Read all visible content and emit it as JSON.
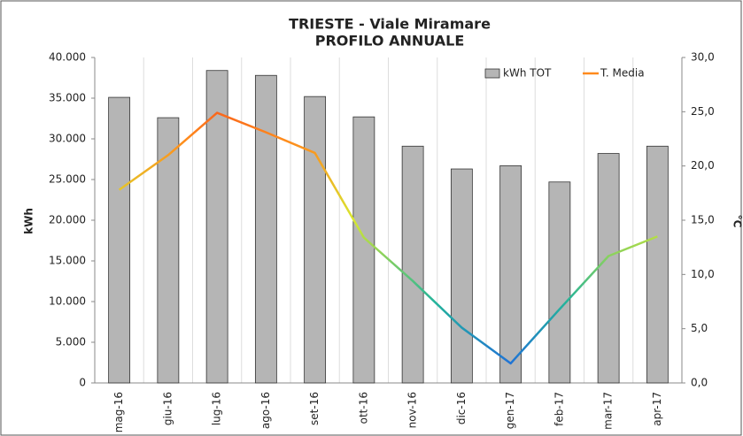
{
  "chart_data": {
    "type": "bar-line",
    "title": "TRIESTE - Viale Miramare",
    "subtitle": "PROFILO ANNUALE",
    "ylabel": "kWh",
    "y2label": "°C",
    "categories": [
      "mag-16",
      "giu-16",
      "lug-16",
      "ago-16",
      "set-16",
      "ott-16",
      "nov-16",
      "dic-16",
      "gen-17",
      "feb-17",
      "mar-17",
      "apr-17"
    ],
    "series": [
      {
        "name": "kWh TOT",
        "type": "bar",
        "color": "#b5b5b5",
        "values": [
          35100,
          32600,
          38400,
          37800,
          35200,
          32700,
          29100,
          26300,
          26700,
          24700,
          28200,
          29100
        ]
      },
      {
        "name": "T. Media",
        "type": "line",
        "axis": "y2",
        "colorscale": [
          "#1f5fe8",
          "#24b49a",
          "#d8e830",
          "#ff8a1c",
          "#ee1c1c"
        ],
        "values": [
          17.8,
          21.0,
          24.9,
          23.1,
          21.2,
          13.4,
          9.4,
          5.1,
          1.8,
          6.8,
          11.7,
          13.5
        ]
      }
    ],
    "ylim": [
      0,
      40000
    ],
    "yticks": [
      0,
      {
        "value": 5000,
        "label": "5.000"
      },
      {
        "value": 10000,
        "label": "10.000"
      },
      {
        "value": 15000,
        "label": "15.000"
      },
      {
        "value": 20000,
        "label": "20.000"
      },
      {
        "value": 25000,
        "label": "25.000"
      },
      {
        "value": 30000,
        "label": "30.000"
      },
      {
        "value": 35000,
        "label": "35.000"
      },
      {
        "value": 40000,
        "label": "40.000"
      }
    ],
    "y2lim": [
      0,
      30
    ],
    "y2ticks": [
      {
        "value": 0,
        "label": "0,0"
      },
      {
        "value": 5,
        "label": "5,0"
      },
      {
        "value": 10,
        "label": "10,0"
      },
      {
        "value": 15,
        "label": "15,0"
      },
      {
        "value": 20,
        "label": "20,0"
      },
      {
        "value": 25,
        "label": "25,0"
      },
      {
        "value": 30,
        "label": "30,0"
      }
    ],
    "legend": "top-right"
  }
}
